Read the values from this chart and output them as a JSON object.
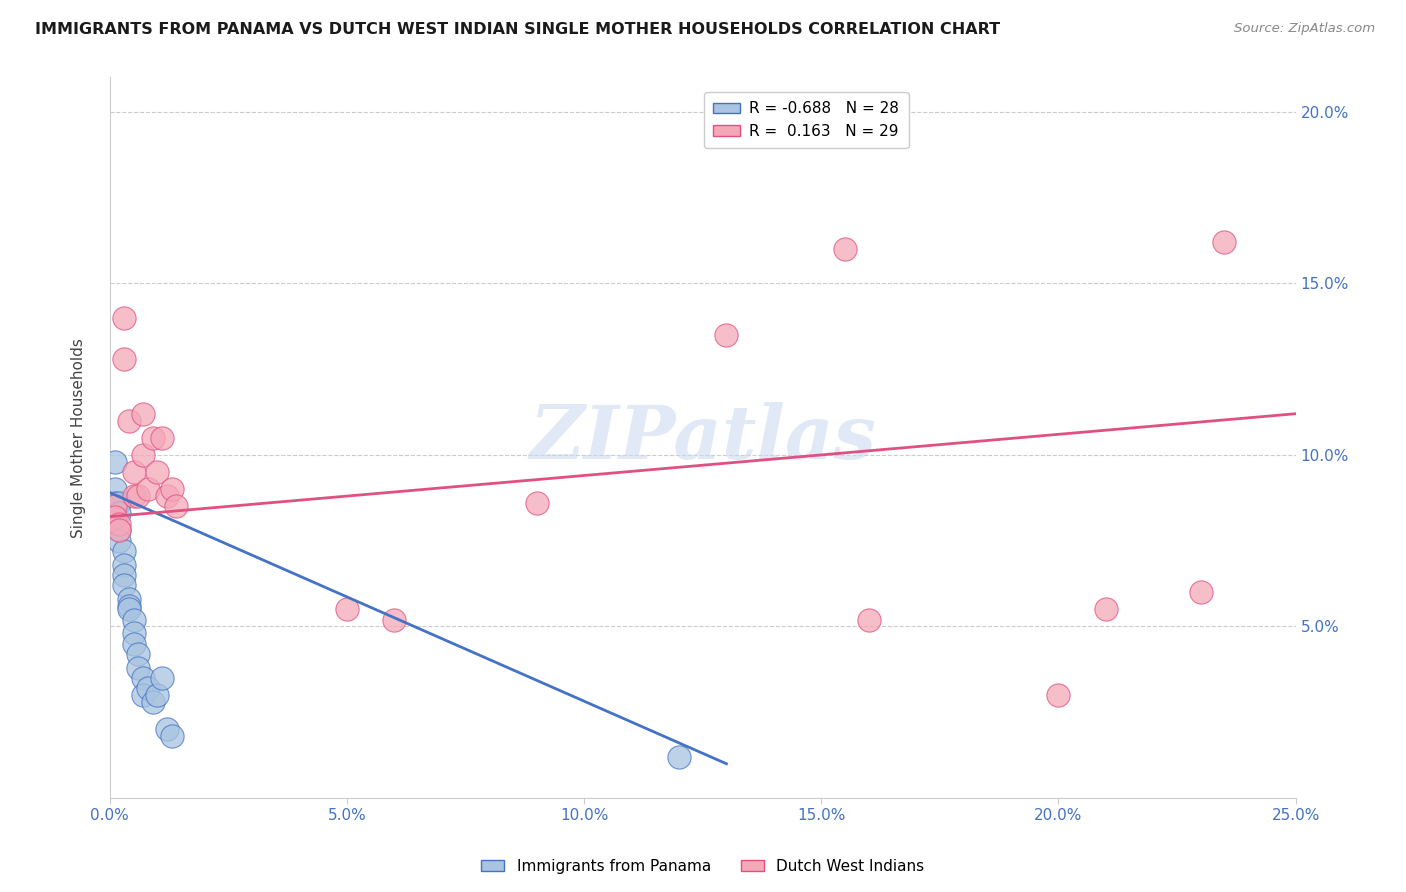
{
  "title": "IMMIGRANTS FROM PANAMA VS DUTCH WEST INDIAN SINGLE MOTHER HOUSEHOLDS CORRELATION CHART",
  "source": "Source: ZipAtlas.com",
  "ylabel": "Single Mother Households",
  "xlim": [
    0.0,
    0.25
  ],
  "ylim": [
    0.0,
    0.21
  ],
  "x_ticks": [
    0.0,
    0.05,
    0.1,
    0.15,
    0.2,
    0.25
  ],
  "x_tick_labels": [
    "0.0%",
    "5.0%",
    "10.0%",
    "15.0%",
    "20.0%",
    "25.0%"
  ],
  "y_ticks": [
    0.0,
    0.05,
    0.1,
    0.15,
    0.2
  ],
  "y_tick_labels": [
    "",
    "5.0%",
    "10.0%",
    "15.0%",
    "20.0%"
  ],
  "legend_r1": "R = -0.688",
  "legend_n1": "N = 28",
  "legend_r2": "R =  0.163",
  "legend_n2": "N = 29",
  "blue_color": "#a8c4e0",
  "pink_color": "#f4a8b8",
  "blue_line_color": "#4472c4",
  "pink_line_color": "#e05080",
  "panama_x": [
    0.001,
    0.001,
    0.001,
    0.002,
    0.002,
    0.002,
    0.002,
    0.003,
    0.003,
    0.003,
    0.003,
    0.004,
    0.004,
    0.004,
    0.005,
    0.005,
    0.005,
    0.006,
    0.006,
    0.007,
    0.007,
    0.008,
    0.009,
    0.01,
    0.011,
    0.012,
    0.013,
    0.12
  ],
  "panama_y": [
    0.098,
    0.09,
    0.086,
    0.086,
    0.083,
    0.078,
    0.075,
    0.072,
    0.068,
    0.065,
    0.062,
    0.058,
    0.056,
    0.055,
    0.052,
    0.048,
    0.045,
    0.042,
    0.038,
    0.035,
    0.03,
    0.032,
    0.028,
    0.03,
    0.035,
    0.02,
    0.018,
    0.012
  ],
  "dutch_x": [
    0.001,
    0.001,
    0.002,
    0.002,
    0.003,
    0.003,
    0.004,
    0.005,
    0.005,
    0.006,
    0.007,
    0.007,
    0.008,
    0.009,
    0.01,
    0.011,
    0.012,
    0.013,
    0.014,
    0.05,
    0.06,
    0.09,
    0.13,
    0.155,
    0.16,
    0.2,
    0.21,
    0.23,
    0.235
  ],
  "dutch_y": [
    0.085,
    0.082,
    0.08,
    0.078,
    0.14,
    0.128,
    0.11,
    0.095,
    0.088,
    0.088,
    0.112,
    0.1,
    0.09,
    0.105,
    0.095,
    0.105,
    0.088,
    0.09,
    0.085,
    0.055,
    0.052,
    0.086,
    0.135,
    0.16,
    0.052,
    0.03,
    0.055,
    0.06,
    0.162
  ],
  "blue_trend_x": [
    0.0,
    0.13
  ],
  "blue_trend_y": [
    0.089,
    0.01
  ],
  "pink_trend_x": [
    0.0,
    0.25
  ],
  "pink_trend_y": [
    0.082,
    0.112
  ],
  "watermark": "ZIPatlas",
  "watermark_color": "#c8d8ee"
}
